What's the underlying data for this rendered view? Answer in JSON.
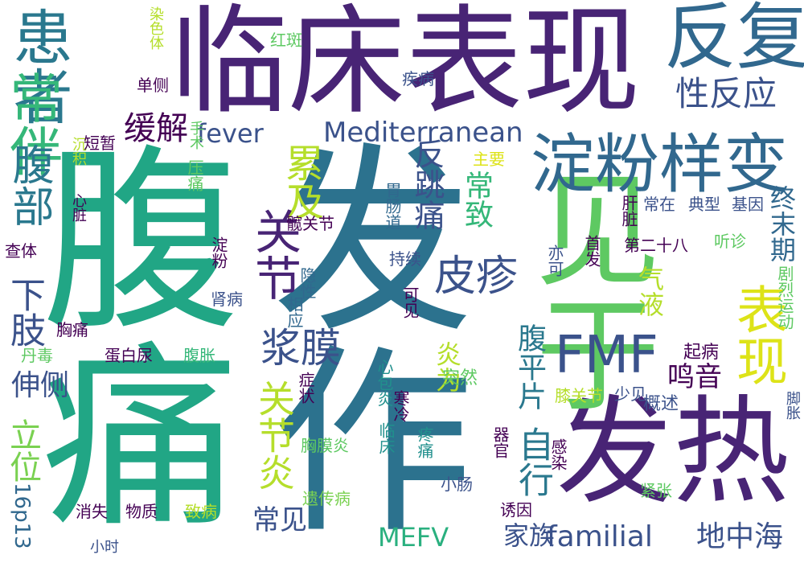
{
  "words": [
    {
      "text": "临床表现",
      "color": "#482475"
    },
    {
      "text": "腹痛",
      "color": "#21a685"
    },
    {
      "text": "发作",
      "color": "#2c728e"
    },
    {
      "text": "发热",
      "color": "#482475"
    },
    {
      "text": "见于",
      "color": "#5ec962"
    },
    {
      "text": "淀粉样变",
      "color": "#31688e"
    },
    {
      "text": "反复",
      "color": "#31688e"
    },
    {
      "text": "患者",
      "color": "#2a788e"
    },
    {
      "text": "常伴",
      "color": "#35b779"
    },
    {
      "text": "性反应",
      "color": "#3b528b"
    },
    {
      "text": "FMF",
      "color": "#3b528b"
    },
    {
      "text": "表现",
      "color": "#dde318"
    },
    {
      "text": "累及",
      "color": "#b5de2b"
    },
    {
      "text": "腹部",
      "color": "#2a788e"
    },
    {
      "text": "关节",
      "color": "#482475"
    },
    {
      "text": "浆膜",
      "color": "#3b528b"
    },
    {
      "text": "皮疹",
      "color": "#3b528b"
    },
    {
      "text": "缓解",
      "color": "#440154"
    },
    {
      "text": "fever",
      "color": "#3b528b"
    },
    {
      "text": "Mediterranean",
      "color": "#3b528b"
    },
    {
      "text": "familial",
      "color": "#3b528b"
    },
    {
      "text": "地中海",
      "color": "#3b528b"
    },
    {
      "text": "家族",
      "color": "#3b528b"
    },
    {
      "text": "MEFV",
      "color": "#2ab07f"
    },
    {
      "text": "常见",
      "color": "#3b528b"
    },
    {
      "text": "下肢",
      "color": "#3b528b"
    },
    {
      "text": "立位",
      "color": "#7ad151"
    },
    {
      "text": "伸侧",
      "color": "#3b528b"
    },
    {
      "text": "16p13",
      "color": "#31688e"
    },
    {
      "text": "关节炎",
      "color": "#b5de2b"
    },
    {
      "text": "反跳痛",
      "color": "#3b528b"
    },
    {
      "text": "常致",
      "color": "#35b779"
    },
    {
      "text": "自行",
      "color": "#2a788e"
    },
    {
      "text": "腹平片",
      "color": "#2a788e"
    },
    {
      "text": "鸣音",
      "color": "#440154"
    },
    {
      "text": "炎为",
      "color": "#b5de2b"
    },
    {
      "text": "气液",
      "color": "#b5de2b"
    },
    {
      "text": "终末期",
      "color": "#31688e"
    },
    {
      "text": "剧烈运动",
      "color": "#5ec962"
    },
    {
      "text": "起病",
      "color": "#440154"
    },
    {
      "text": "概述",
      "color": "#3b528b"
    },
    {
      "text": "少见",
      "color": "#3b528b"
    },
    {
      "text": "膝关节",
      "color": "#b5de2b"
    },
    {
      "text": "脚胀",
      "color": "#3b528b"
    },
    {
      "text": "紧张",
      "color": "#5ec962"
    },
    {
      "text": "感染",
      "color": "#440154"
    },
    {
      "text": "诱因",
      "color": "#440154"
    },
    {
      "text": "器官",
      "color": "#440154"
    },
    {
      "text": "突然",
      "color": "#5ec962"
    },
    {
      "text": "疼痛",
      "color": "#21908d"
    },
    {
      "text": "小肠",
      "color": "#3b528b"
    },
    {
      "text": "心包炎",
      "color": "#21908d"
    },
    {
      "text": "临床",
      "color": "#21908d"
    },
    {
      "text": "寒冷",
      "color": "#440154"
    },
    {
      "text": "胸膜炎",
      "color": "#5ec962"
    },
    {
      "text": "遗传病",
      "color": "#7ad151"
    },
    {
      "text": "症状",
      "color": "#440154"
    },
    {
      "text": "相应",
      "color": "#31688e"
    },
    {
      "text": "隐性",
      "color": "#31688e"
    },
    {
      "text": "可见",
      "color": "#440154"
    },
    {
      "text": "持续",
      "color": "#3b528b"
    },
    {
      "text": "胃肠道",
      "color": "#31688e"
    },
    {
      "text": "疾病",
      "color": "#3b528b"
    },
    {
      "text": "主要",
      "color": "#dde318"
    },
    {
      "text": "肝脏",
      "color": "#440154"
    },
    {
      "text": "常在",
      "color": "#3b528b"
    },
    {
      "text": "典型",
      "color": "#3b528b"
    },
    {
      "text": "基因",
      "color": "#3b528b"
    },
    {
      "text": "第二十八",
      "color": "#440154"
    },
    {
      "text": "首发",
      "color": "#440154"
    },
    {
      "text": "亦可",
      "color": "#3b528b"
    },
    {
      "text": "听诊",
      "color": "#5ec962"
    },
    {
      "text": "髋关节",
      "color": "#440154"
    },
    {
      "text": "淀粉",
      "color": "#440154"
    },
    {
      "text": "肾病",
      "color": "#3b528b"
    },
    {
      "text": "胸痛",
      "color": "#440154"
    },
    {
      "text": "蛋白尿",
      "color": "#440154"
    },
    {
      "text": "腹胀",
      "color": "#35b779"
    },
    {
      "text": "丹毒",
      "color": "#5ec962"
    },
    {
      "text": "查体",
      "color": "#440154"
    },
    {
      "text": "消失",
      "color": "#440154"
    },
    {
      "text": "物质",
      "color": "#440154"
    },
    {
      "text": "致病",
      "color": "#b5de2b"
    },
    {
      "text": "小时",
      "color": "#3b528b"
    },
    {
      "text": "心脏",
      "color": "#440154"
    },
    {
      "text": "沉积",
      "color": "#b5de2b"
    },
    {
      "text": "压痛",
      "color": "#5ec962"
    },
    {
      "text": "手术",
      "color": "#5ec962"
    },
    {
      "text": "短暂",
      "color": "#440154"
    },
    {
      "text": "单侧",
      "color": "#440154"
    },
    {
      "text": "红斑",
      "color": "#5ec962"
    },
    {
      "text": "染色体",
      "color": "#b5de2b"
    }
  ]
}
